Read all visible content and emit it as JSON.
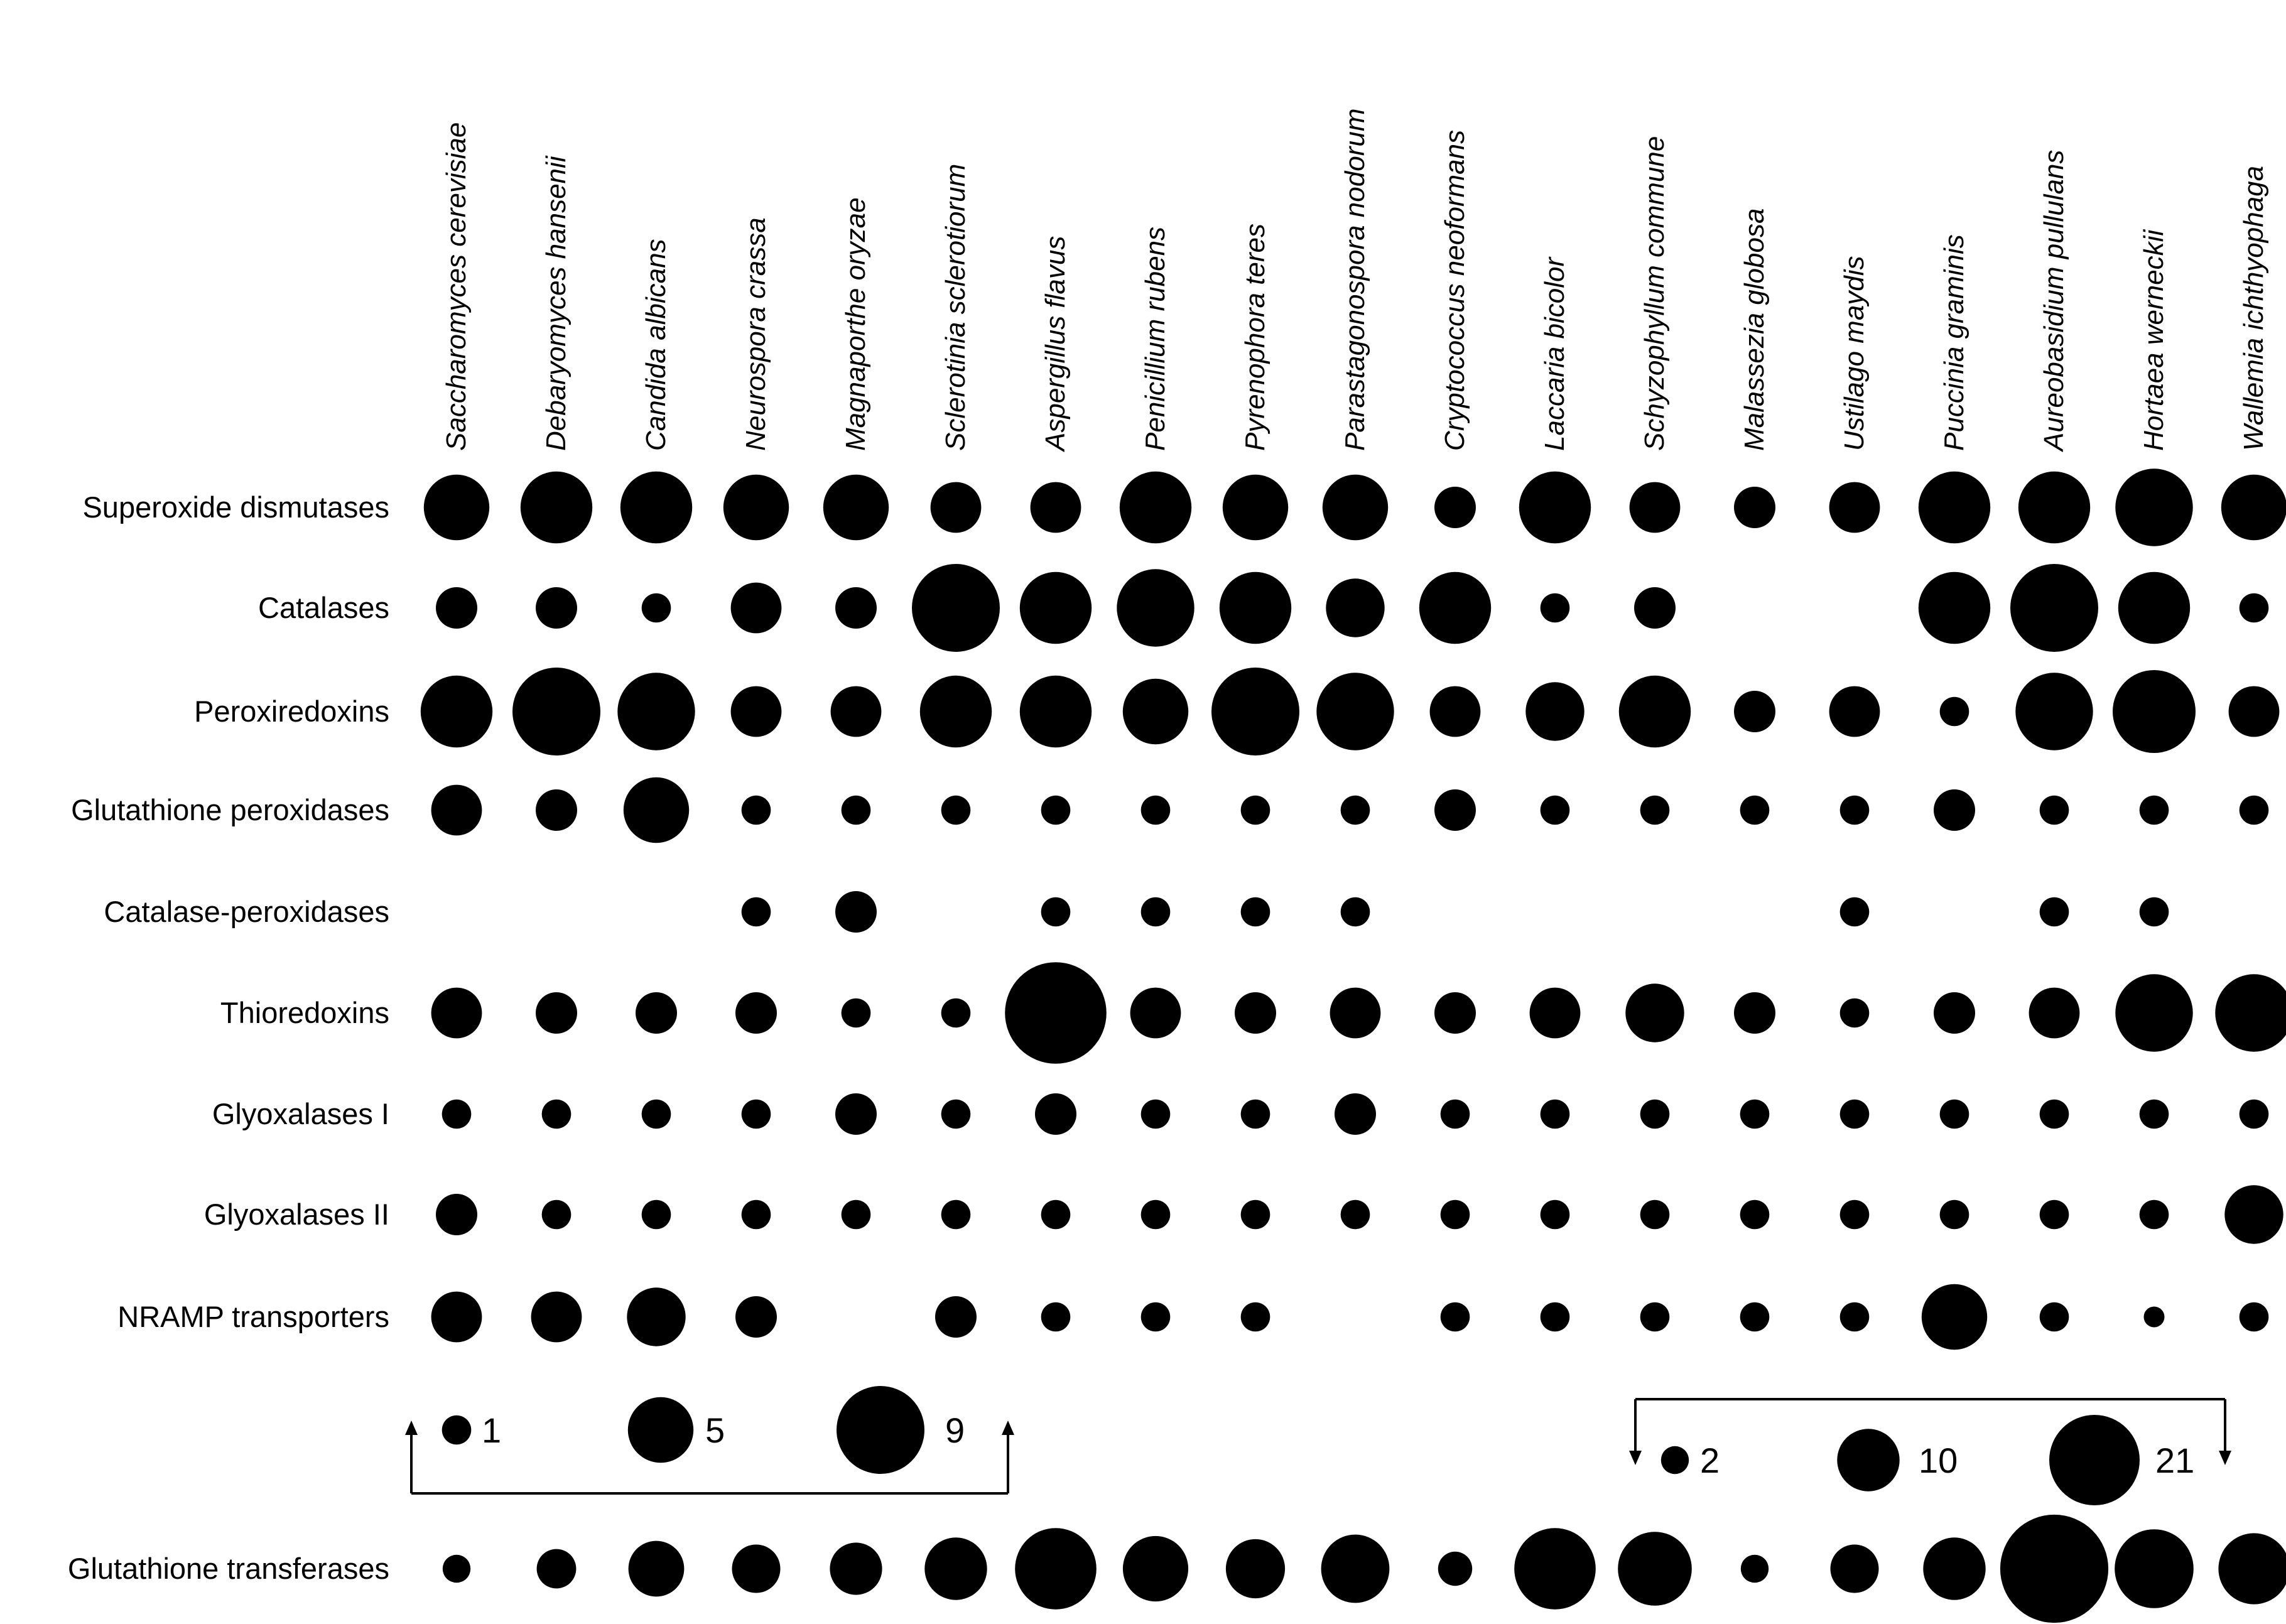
{
  "chart_data": {
    "type": "bubble-matrix",
    "species": [
      "Saccharomyces cerevisiae",
      "Debaryomyces hansenii",
      "Candida albicans",
      "Neurospora crassa",
      "Magnaporthe oryzae",
      "Sclerotinia sclerotiorum",
      "Aspergillus flavus",
      "Penicillium rubens",
      "Pyrenophora teres",
      "Parastagonospora nodorum",
      "Cryptococcus neoformans",
      "Laccaria bicolor",
      "Schyzophyllum commune",
      "Malassezia globosa",
      "Ustilago maydis",
      "Puccinia graminis",
      "Aureobasidium pullulans",
      "Hortaea werneckii",
      "Wallemia ichthyophaga"
    ],
    "rows": [
      {
        "name": "Superoxide dismutases",
        "scale": "A",
        "values": [
          5,
          6,
          6,
          5,
          5,
          3,
          3,
          6,
          5,
          5,
          2,
          6,
          3,
          2,
          3,
          6,
          6,
          7,
          5
        ]
      },
      {
        "name": "Catalases",
        "scale": "A",
        "values": [
          2,
          2,
          1,
          3,
          2,
          9,
          6,
          7,
          6,
          4,
          6,
          1,
          2,
          0,
          0,
          6,
          9,
          6,
          1
        ]
      },
      {
        "name": "Peroxiredoxins",
        "scale": "A",
        "values": [
          6,
          9,
          7,
          3,
          3,
          6,
          6,
          5,
          9,
          7,
          3,
          4,
          6,
          2,
          3,
          1,
          7,
          8,
          3
        ]
      },
      {
        "name": "Glutathione peroxidases",
        "scale": "A",
        "values": [
          3,
          2,
          5,
          1,
          1,
          1,
          1,
          1,
          1,
          1,
          2,
          1,
          1,
          1,
          1,
          2,
          1,
          1,
          1
        ]
      },
      {
        "name": "Catalase-peroxidases",
        "scale": "A",
        "values": [
          0,
          0,
          0,
          1,
          2,
          0,
          1,
          1,
          1,
          1,
          0,
          0,
          0,
          0,
          1,
          0,
          1,
          1,
          0
        ]
      },
      {
        "name": "Thioredoxins",
        "scale": "A",
        "values": [
          3,
          2,
          2,
          2,
          1,
          1,
          12,
          3,
          2,
          3,
          2,
          3,
          4,
          2,
          1,
          2,
          3,
          7,
          7
        ]
      },
      {
        "name": "Glyoxalases I",
        "scale": "A",
        "values": [
          1,
          1,
          1,
          1,
          2,
          1,
          2,
          1,
          1,
          2,
          1,
          1,
          1,
          1,
          1,
          1,
          1,
          1,
          1
        ]
      },
      {
        "name": "Glyoxalases II",
        "scale": "A",
        "values": [
          2,
          1,
          1,
          1,
          1,
          1,
          1,
          1,
          1,
          1,
          1,
          1,
          1,
          1,
          1,
          1,
          1,
          1,
          4
        ]
      },
      {
        "name": "NRAMP transporters",
        "scale": "A",
        "values": [
          3,
          3,
          4,
          2,
          0,
          2,
          1,
          1,
          1,
          0,
          1,
          1,
          1,
          1,
          1,
          5,
          1,
          0.5,
          1
        ]
      },
      {
        "name": "Glutathione transferases",
        "scale": "B",
        "values": [
          2,
          4,
          8,
          6,
          7,
          10,
          17,
          11,
          9,
          12,
          3,
          17,
          14,
          2,
          6,
          10,
          30,
          16,
          13
        ]
      }
    ],
    "legend_left": {
      "sizes": [
        1,
        5,
        9
      ],
      "labels": [
        "1",
        "5",
        "9"
      ]
    },
    "legend_right": {
      "sizes": [
        2,
        10,
        21
      ],
      "labels": [
        "2",
        "10",
        "21"
      ]
    }
  }
}
